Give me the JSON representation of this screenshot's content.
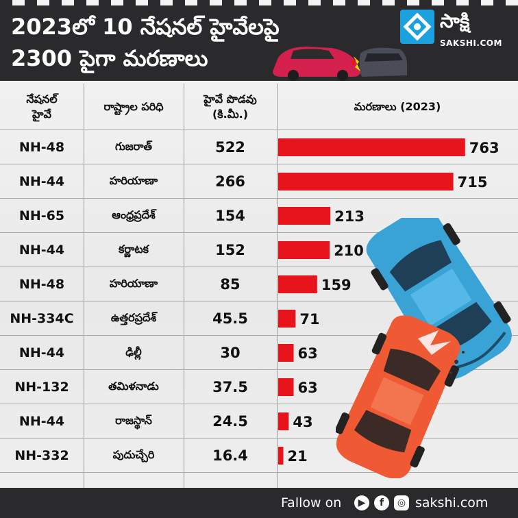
{
  "header": {
    "title_line1": "2023లో 10 నేషనల్ హైవేలపై",
    "title_line2": "2300 పైగా మరణాలు",
    "brand_name": "సాక్షి",
    "brand_site": "SAKSHI.COM"
  },
  "table": {
    "headers": {
      "highway_line1": "నేషనల్",
      "highway_line2": "హైవే",
      "state": "రాష్ట్రాల పరిధి",
      "length_line1": "హైవే పొడవు",
      "length_line2": "(కి.మీ.)",
      "deaths": "మరణాలు (2023)"
    },
    "rows": [
      {
        "highway": "NH-48",
        "state": "గుజరాత్",
        "length": "522",
        "deaths": "763"
      },
      {
        "highway": "NH-44",
        "state": "హరియాణా",
        "length": "266",
        "deaths": "715"
      },
      {
        "highway": "NH-65",
        "state": "ఆంధ్రప్రదేశ్",
        "length": "154",
        "deaths": "213"
      },
      {
        "highway": "NH-44",
        "state": "కర్ణాటక",
        "length": "152",
        "deaths": "210"
      },
      {
        "highway": "NH-48",
        "state": "హరియాణా",
        "length": "85",
        "deaths": "159"
      },
      {
        "highway": "NH-334C",
        "state": "ఉత్తరప్రదేశ్",
        "length": "45.5",
        "deaths": "71"
      },
      {
        "highway": "NH-44",
        "state": "ఢిల్లీ",
        "length": "30",
        "deaths": "63"
      },
      {
        "highway": "NH-132",
        "state": "తమిళనాడు",
        "length": "37.5",
        "deaths": "63"
      },
      {
        "highway": "NH-44",
        "state": "రాజస్థాన్",
        "length": "24.5",
        "deaths": "43"
      },
      {
        "highway": "NH-332",
        "state": "పుదుచ్చేరి",
        "length": "16.4",
        "deaths": "21"
      }
    ]
  },
  "chart_data": {
    "type": "bar",
    "orientation": "horizontal",
    "categories": [
      "NH-48",
      "NH-44",
      "NH-65",
      "NH-44",
      "NH-48",
      "NH-334C",
      "NH-44",
      "NH-132",
      "NH-44",
      "NH-332"
    ],
    "values": [
      763,
      715,
      213,
      210,
      159,
      71,
      63,
      63,
      43,
      21
    ],
    "value_labels": [
      "763",
      "715",
      "213",
      "210",
      "159",
      "71",
      "63",
      "63",
      "43",
      "21"
    ],
    "title": "మరణాలు (2023)",
    "xlim": [
      0,
      800
    ],
    "bar_color": "#e8141b",
    "grid": false
  },
  "footer": {
    "follow_label": "Fallow on",
    "site": "sakshi.com"
  },
  "colors": {
    "header_bg": "#2a2a2c",
    "bar": "#e8141b",
    "brand_blue": "#1aa1de",
    "page_bg": "#ececec"
  },
  "icons": [
    "brand-logo-icon",
    "youtube-icon",
    "facebook-icon",
    "instagram-icon",
    "crashed-cars-illustration"
  ]
}
